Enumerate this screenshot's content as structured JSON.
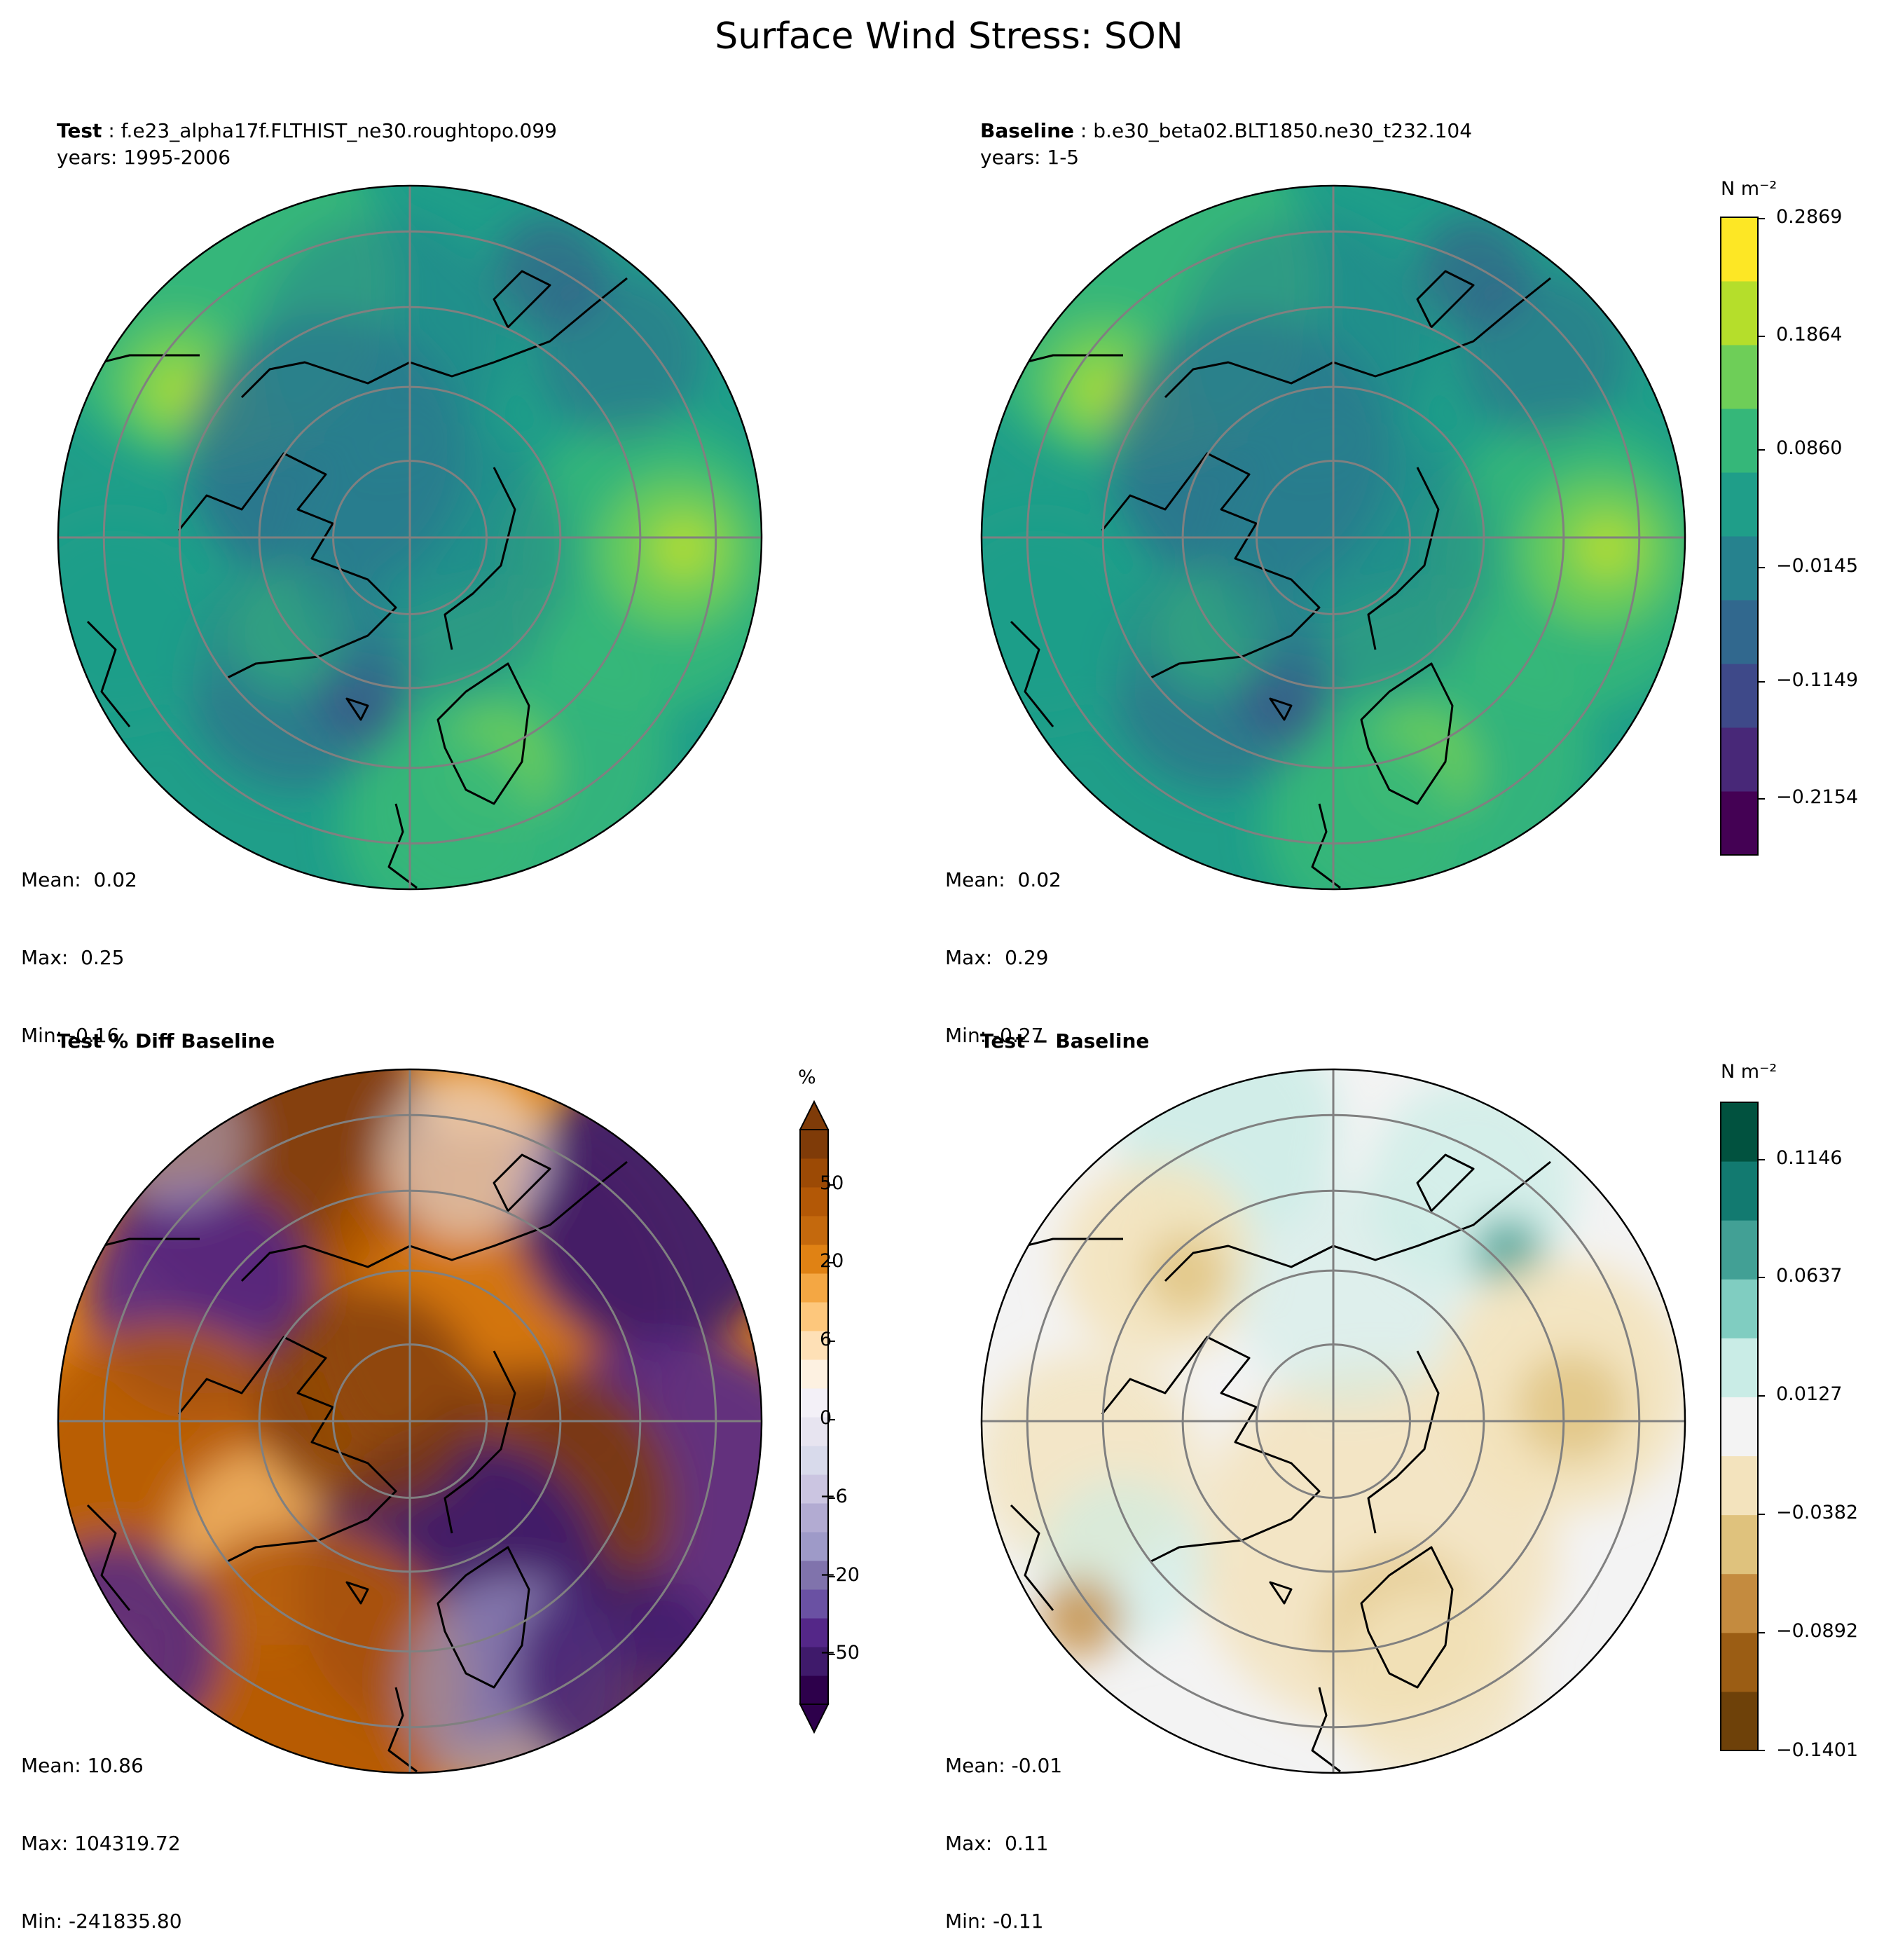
{
  "figure": {
    "title": "Surface Wind Stress: SON"
  },
  "panels": [
    {
      "id": "test",
      "label": "Test",
      "case": "f.e23_alpha17f.FLTHIST_ne30.roughtopo.099",
      "years": "years: 1995-2006",
      "stats": {
        "mean": "Mean:  0.02",
        "max": "Max:  0.25",
        "min": "Min: -0.16"
      },
      "palette": "viridis"
    },
    {
      "id": "baseline",
      "label": "Baseline",
      "case": "b.e30_beta02.BLT1850.ne30_t232.104",
      "years": "years: 1-5",
      "stats": {
        "mean": "Mean:  0.02",
        "max": "Max:  0.29",
        "min": "Min: -0.27"
      },
      "palette": "viridis"
    },
    {
      "id": "pctdiff",
      "label": "Test % Diff Baseline",
      "stats": {
        "mean": "Mean: 10.86",
        "max": "Max: 104319.72",
        "min": "Min: -241835.80"
      },
      "palette": "PuOr_r"
    },
    {
      "id": "diff",
      "label": "Test − Baseline",
      "stats": {
        "mean": "Mean: -0.01",
        "max": "Max:  0.11",
        "min": "Min: -0.11"
      },
      "palette": "BrBG"
    }
  ],
  "colorbars": {
    "main": {
      "unit": "N m⁻²",
      "ticks": [
        "0.2869",
        "0.1864",
        "0.0860",
        "−0.0145",
        "−0.1149",
        "−0.2154"
      ],
      "colors": [
        "#440154",
        "#482878",
        "#3e4989",
        "#31688e",
        "#26828e",
        "#1f9e89",
        "#35b779",
        "#6ece58",
        "#b5de2b",
        "#fde725"
      ]
    },
    "pct": {
      "unit": "%",
      "ticks": [
        "50",
        "20",
        "6",
        "0",
        "−6",
        "−20",
        "−50"
      ],
      "colors": [
        "#2d004b",
        "#3f1a6b",
        "#542788",
        "#6a51a3",
        "#8073ac",
        "#9e9ac8",
        "#b2abd2",
        "#cbc5e1",
        "#d8daeb",
        "#e7e4f0",
        "#f3f0f7",
        "#fdf1e1",
        "#fee0b6",
        "#fdc77c",
        "#f4a743",
        "#e08214",
        "#c4690d",
        "#b35806",
        "#9c4a05",
        "#7f3b08"
      ]
    },
    "diff": {
      "unit": "N m⁻²",
      "ticks": [
        "0.1146",
        "0.0637",
        "0.0127",
        "−0.0382",
        "−0.0892",
        "−0.1401"
      ],
      "colors": [
        "#6e4109",
        "#9b5d14",
        "#c48b3f",
        "#dfc27d",
        "#f3e3bd",
        "#f3f3f3",
        "#c9ece6",
        "#80cdc1",
        "#42a095",
        "#127a70",
        "#01523f"
      ]
    }
  }
}
